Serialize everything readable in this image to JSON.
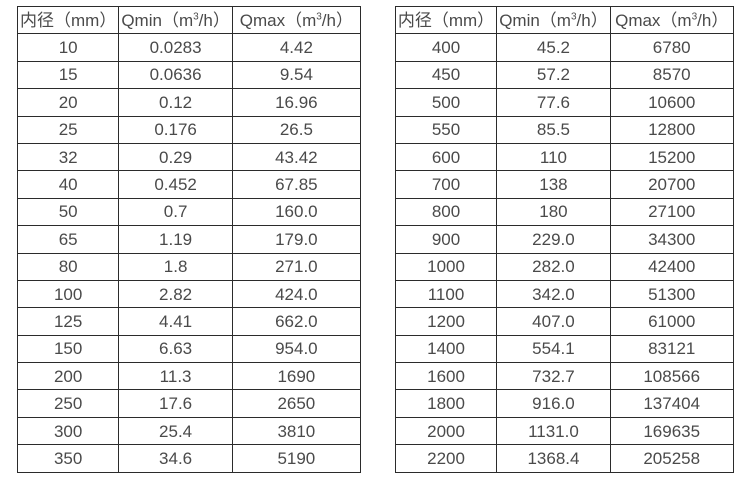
{
  "page": {
    "background_color": "#ffffff",
    "text_color": "#4a4a4a",
    "border_color": "#2b2b2b"
  },
  "columns": [
    {
      "pre": "内径（mm）",
      "sup": "",
      "post": ""
    },
    {
      "pre": "Qmin（m",
      "sup": "3",
      "post": "/h）"
    },
    {
      "pre": "Qmax（m",
      "sup": "3",
      "post": "/h）"
    }
  ],
  "tables": [
    {
      "name": "flow-range-table-small-diameters",
      "rows": [
        [
          "10",
          "0.0283",
          "4.42"
        ],
        [
          "15",
          "0.0636",
          "9.54"
        ],
        [
          "20",
          "0.12",
          "16.96"
        ],
        [
          "25",
          "0.176",
          "26.5"
        ],
        [
          "32",
          "0.29",
          "43.42"
        ],
        [
          "40",
          "0.452",
          "67.85"
        ],
        [
          "50",
          "0.7",
          "160.0"
        ],
        [
          "65",
          "1.19",
          "179.0"
        ],
        [
          "80",
          "1.8",
          "271.0"
        ],
        [
          "100",
          "2.82",
          "424.0"
        ],
        [
          "125",
          "4.41",
          "662.0"
        ],
        [
          "150",
          "6.63",
          "954.0"
        ],
        [
          "200",
          "11.3",
          "1690"
        ],
        [
          "250",
          "17.6",
          "2650"
        ],
        [
          "300",
          "25.4",
          "3810"
        ],
        [
          "350",
          "34.6",
          "5190"
        ]
      ]
    },
    {
      "name": "flow-range-table-large-diameters",
      "rows": [
        [
          "400",
          "45.2",
          "6780"
        ],
        [
          "450",
          "57.2",
          "8570"
        ],
        [
          "500",
          "77.6",
          "10600"
        ],
        [
          "550",
          "85.5",
          "12800"
        ],
        [
          "600",
          "110",
          "15200"
        ],
        [
          "700",
          "138",
          "20700"
        ],
        [
          "800",
          "180",
          "27100"
        ],
        [
          "900",
          "229.0",
          "34300"
        ],
        [
          "1000",
          "282.0",
          "42400"
        ],
        [
          "1100",
          "342.0",
          "51300"
        ],
        [
          "1200",
          "407.0",
          "61000"
        ],
        [
          "1400",
          "554.1",
          "83121"
        ],
        [
          "1600",
          "732.7",
          "108566"
        ],
        [
          "1800",
          "916.0",
          "137404"
        ],
        [
          "2000",
          "1131.0",
          "169635"
        ],
        [
          "2200",
          "1368.4",
          "205258"
        ]
      ]
    }
  ]
}
